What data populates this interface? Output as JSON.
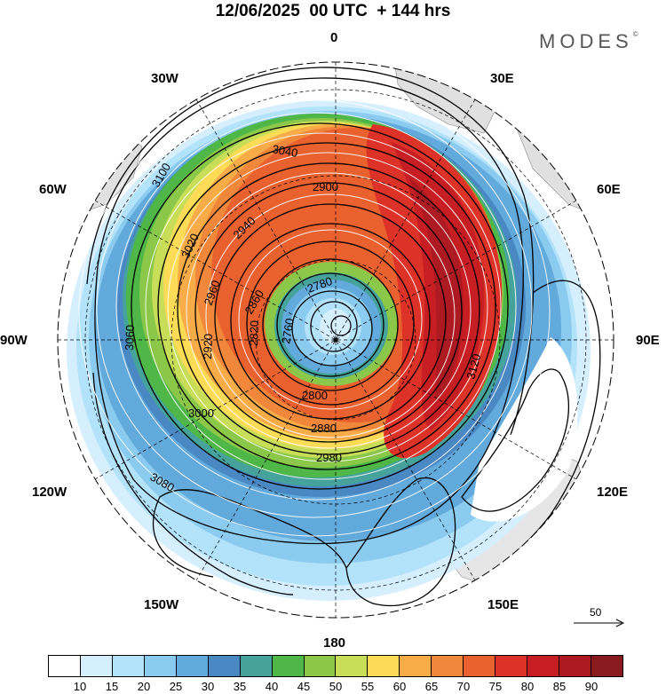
{
  "header": {
    "title": "12/06/2025  00 UTC  + 144 hrs",
    "logo_text": "MODES",
    "logo_mark": "©"
  },
  "map": {
    "projection": "polar-stereographic",
    "center": "south-pole",
    "longitude_labels": {
      "top": "0",
      "top_left": "30W",
      "top_right": "30E",
      "upper_left": "60W",
      "upper_right": "60E",
      "left": "90W",
      "right": "90E",
      "lower_left": "120W",
      "lower_right": "120E",
      "bottom_left": "150W",
      "bottom_right": "150E",
      "bottom": "180"
    },
    "contour_labels": [
      "2760",
      "2780",
      "2800",
      "2820",
      "2860",
      "2880",
      "2900",
      "2920",
      "2940",
      "2960",
      "2980",
      "3000",
      "3020",
      "3040",
      "3060",
      "3080",
      "3100",
      "3120"
    ],
    "reference_vector": "50"
  },
  "colorbar": {
    "colors": [
      "#ffffff",
      "#d5efff",
      "#b2e3fb",
      "#8ccbf0",
      "#62a9dc",
      "#4a88c4",
      "#45a39b",
      "#4fb648",
      "#8bc849",
      "#c8de58",
      "#fcdb57",
      "#f7ac48",
      "#f1873a",
      "#ea6130",
      "#dc3228",
      "#c71e23",
      "#ad1a22",
      "#891a1e"
    ],
    "labels": [
      "10",
      "15",
      "20",
      "25",
      "30",
      "35",
      "40",
      "45",
      "50",
      "55",
      "60",
      "65",
      "70",
      "75",
      "80",
      "85",
      "90"
    ]
  }
}
